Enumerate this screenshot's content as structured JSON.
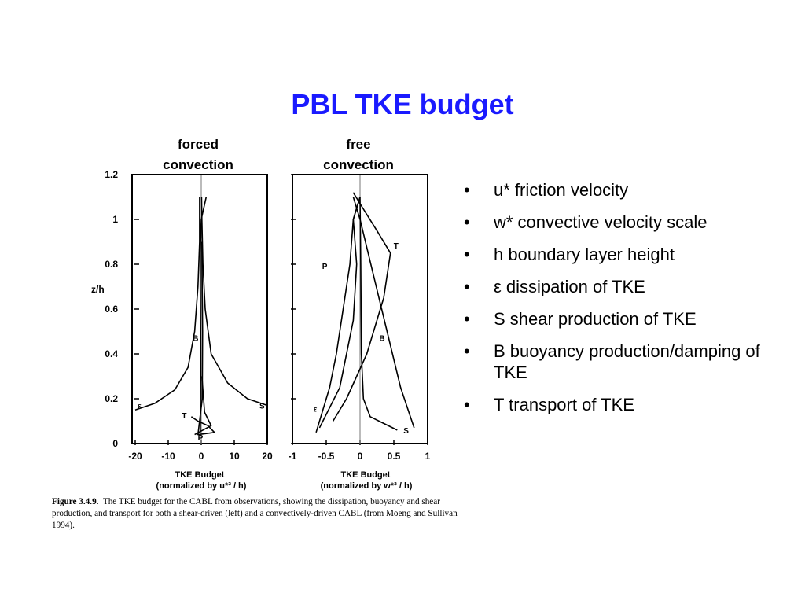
{
  "slide": {
    "title": "PBL TKE budget",
    "left_panel_heading": [
      "forced",
      "convection"
    ],
    "right_panel_heading": [
      "free",
      "convection"
    ],
    "bullets": [
      "u* friction velocity",
      "w* convective velocity scale",
      "h boundary layer height",
      "ε dissipation of TKE",
      "S shear production of TKE",
      "B buoyancy production/damping of TKE",
      "T transport of TKE"
    ],
    "bullet_glyph": "•",
    "title_color": "#1a1aff"
  },
  "figure": {
    "caption_label": "Figure 3.4.9.",
    "caption_text": "The TKE budget for the CABL from observations, showing the dissipation, buoyancy and shear production, and transport for both a shear-driven (left) and a convectively-driven CABL (from Moeng and Sullivan 1994).",
    "left_xlabel_1": "TKE Budget",
    "left_xlabel_2": "(normalized by u*³ / h)",
    "right_xlabel_1": "TKE Budget",
    "right_xlabel_2": "(normalized by w*³ / h)"
  },
  "chart_data": [
    {
      "type": "line",
      "ylabel": "z/h",
      "xlabel": "TKE Budget (normalized by u*³ / h)",
      "xlim": [
        -20,
        20
      ],
      "ylim": [
        0,
        1.2
      ],
      "x_ticks": [
        "-20",
        "-10",
        "0",
        "10",
        "20"
      ],
      "y_ticks": [
        "0",
        "0.2",
        "0.4",
        "0.6",
        "0.8",
        "1",
        "1.2"
      ],
      "grid": false,
      "series": [
        {
          "name": "ε",
          "points": [
            [
              -20,
              0.15
            ],
            [
              -14,
              0.18
            ],
            [
              -8,
              0.24
            ],
            [
              -4,
              0.34
            ],
            [
              -2,
              0.5
            ],
            [
              -1,
              0.7
            ],
            [
              -0.5,
              0.9
            ],
            [
              -0.5,
              1.1
            ]
          ]
        },
        {
          "name": "S",
          "points": [
            [
              20,
              0.17
            ],
            [
              14,
              0.2
            ],
            [
              8,
              0.27
            ],
            [
              3,
              0.4
            ],
            [
              1.2,
              0.6
            ],
            [
              0.5,
              0.8
            ],
            [
              0.2,
              1.0
            ],
            [
              0.1,
              1.1
            ]
          ]
        },
        {
          "name": "B",
          "points": [
            [
              -0.3,
              0.05
            ],
            [
              -0.2,
              0.3
            ],
            [
              -0.2,
              0.5
            ],
            [
              -0.3,
              0.7
            ],
            [
              -0.3,
              0.85
            ],
            [
              0,
              1.0
            ],
            [
              1.5,
              1.1
            ]
          ]
        },
        {
          "name": "T",
          "points": [
            [
              -3,
              0.12
            ],
            [
              -1,
              0.1
            ],
            [
              2,
              0.08
            ],
            [
              4,
              0.05
            ],
            [
              -1,
              0.04
            ],
            [
              0.3,
              0.2
            ],
            [
              0.4,
              0.5
            ],
            [
              0.2,
              0.9
            ]
          ]
        },
        {
          "name": "P",
          "points": [
            [
              -2,
              0.04
            ],
            [
              3,
              0.08
            ],
            [
              1,
              0.14
            ],
            [
              0.2,
              0.3
            ]
          ]
        }
      ]
    },
    {
      "type": "line",
      "ylabel": "z/h",
      "xlabel": "TKE Budget (normalized by w*³ / h)",
      "xlim": [
        -1,
        1
      ],
      "ylim": [
        0,
        1.2
      ],
      "x_ticks": [
        "-1",
        "-0.5",
        "0",
        "0.5",
        "1"
      ],
      "y_ticks": [
        "0",
        "0.2",
        "0.4",
        "0.6",
        "0.8",
        "1",
        "1.2"
      ],
      "grid": false,
      "series": [
        {
          "name": "ε",
          "points": [
            [
              -0.65,
              0.05
            ],
            [
              -0.55,
              0.15
            ],
            [
              -0.45,
              0.25
            ],
            [
              -0.35,
              0.4
            ],
            [
              -0.25,
              0.6
            ],
            [
              -0.15,
              0.8
            ],
            [
              -0.1,
              1.0
            ],
            [
              0.0,
              1.1
            ]
          ]
        },
        {
          "name": "S",
          "points": [
            [
              0.55,
              0.06
            ],
            [
              0.35,
              0.09
            ],
            [
              0.15,
              0.12
            ],
            [
              0.05,
              0.2
            ],
            [
              0.02,
              0.4
            ],
            [
              0.01,
              0.8
            ],
            [
              0.0,
              1.1
            ]
          ]
        },
        {
          "name": "B",
          "points": [
            [
              0.8,
              0.07
            ],
            [
              0.6,
              0.25
            ],
            [
              0.4,
              0.5
            ],
            [
              0.2,
              0.75
            ],
            [
              0.0,
              1.0
            ],
            [
              -0.1,
              1.1
            ]
          ]
        },
        {
          "name": "T",
          "points": [
            [
              -0.4,
              0.1
            ],
            [
              -0.2,
              0.2
            ],
            [
              0.1,
              0.4
            ],
            [
              0.35,
              0.65
            ],
            [
              0.45,
              0.85
            ],
            [
              0.25,
              0.95
            ],
            [
              0.0,
              1.07
            ],
            [
              -0.1,
              1.12
            ]
          ]
        },
        {
          "name": "P",
          "points": [
            [
              -0.6,
              0.07
            ],
            [
              -0.3,
              0.25
            ],
            [
              -0.1,
              0.55
            ],
            [
              -0.05,
              0.8
            ],
            [
              -0.1,
              1.0
            ],
            [
              0.0,
              1.1
            ]
          ]
        }
      ]
    }
  ]
}
